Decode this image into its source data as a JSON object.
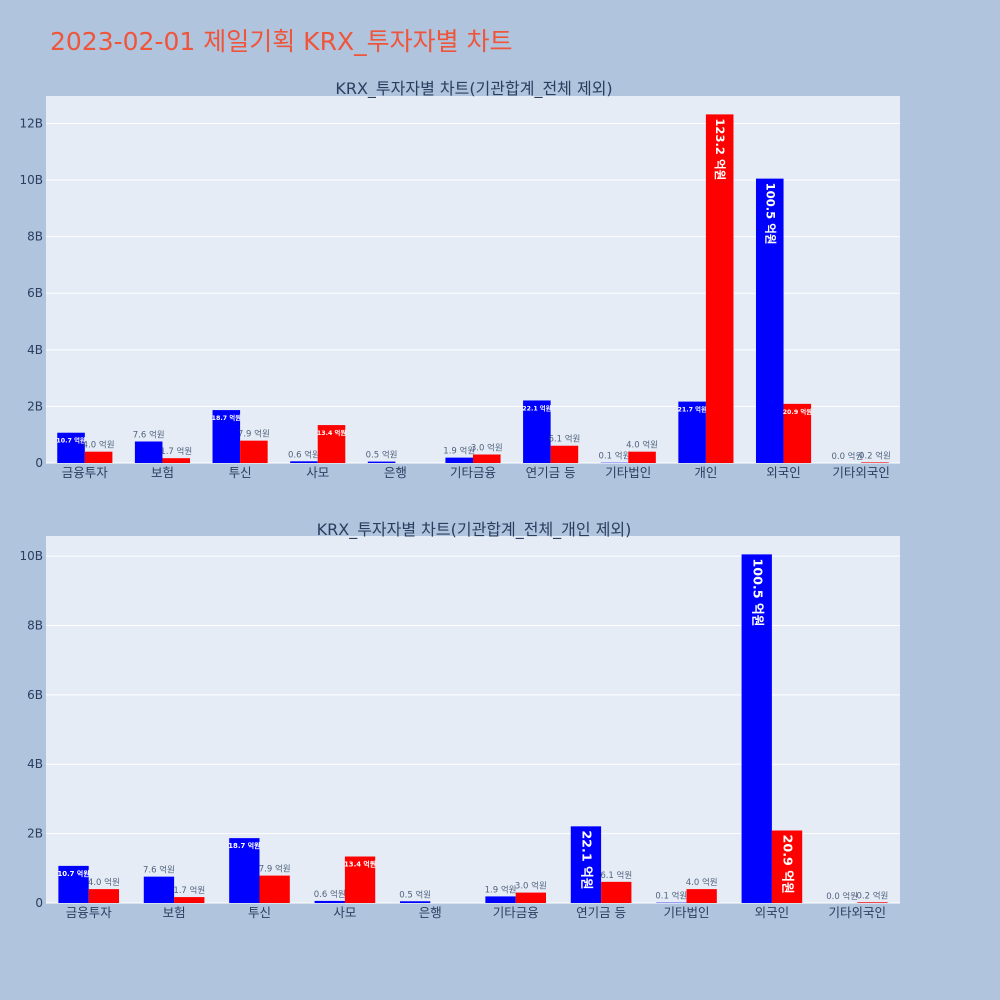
{
  "title": "2023-02-01 제일기획 KRX_투자자별 차트",
  "colors": {
    "buy": "#0000ff",
    "sell": "#ff0000",
    "title": "#ef553b",
    "plot_bg": "#e5ecf6",
    "page_bg": "#b0c4de"
  },
  "chart_data": [
    {
      "type": "bar",
      "title": "KRX_투자자별 차트(기관합계_전체 제외)",
      "categories": [
        "금융투자",
        "보험",
        "투신",
        "사모",
        "은행",
        "기타금융",
        "연기금 등",
        "기타법인",
        "개인",
        "외국인",
        "기타외국인"
      ],
      "series": [
        {
          "color": "#0000ff",
          "values": [
            1070000000.0,
            760000000.0,
            1870000000.0,
            60000000.0,
            50000000.0,
            190000000.0,
            2210000000.0,
            10000000.0,
            2170000000.0,
            10050000000.0,
            0
          ]
        },
        {
          "color": "#ff0000",
          "values": [
            400000000.0,
            170000000.0,
            790000000.0,
            1340000000.0,
            0,
            300000000.0,
            610000000.0,
            400000000.0,
            12320000000.0,
            2090000000.0,
            20000000.0
          ]
        }
      ],
      "bar_labels": [
        [
          "10.7 억원",
          "7.6 억원",
          "18.7 억원",
          "0.6 억원",
          "0.5 억원",
          "1.9 억원",
          "22.1 억원",
          "0.1 억원",
          "21.7 억원",
          "100.5 억원",
          "0.0 억원"
        ],
        [
          "4.0 억원",
          "1.7 억원",
          "7.9 억원",
          "13.4 억원",
          "",
          "3.0 억원",
          "6.1 억원",
          "4.0 억원",
          "123.2 억원",
          "20.9 억원",
          "0.2 억원"
        ]
      ],
      "yticks": [
        0,
        2000000000.0,
        4000000000.0,
        6000000000.0,
        8000000000.0,
        10000000000.0,
        12000000000.0
      ],
      "ytick_labels": [
        "0",
        "2B",
        "4B",
        "6B",
        "8B",
        "10B",
        "12B"
      ],
      "ylim": [
        0,
        12970000000.0
      ],
      "grid": true
    },
    {
      "type": "bar",
      "title": "KRX_투자자별 차트(기관합계_전체_개인 제외)",
      "categories": [
        "금융투자",
        "보험",
        "투신",
        "사모",
        "은행",
        "기타금융",
        "연기금 등",
        "기타법인",
        "외국인",
        "기타외국인"
      ],
      "series": [
        {
          "color": "#0000ff",
          "values": [
            1070000000.0,
            760000000.0,
            1870000000.0,
            60000000.0,
            50000000.0,
            190000000.0,
            2210000000.0,
            10000000.0,
            10050000000.0,
            0
          ]
        },
        {
          "color": "#ff0000",
          "values": [
            400000000.0,
            170000000.0,
            790000000.0,
            1340000000.0,
            0,
            300000000.0,
            610000000.0,
            400000000.0,
            2090000000.0,
            20000000.0
          ]
        }
      ],
      "bar_labels": [
        [
          "10.7 억원",
          "7.6 억원",
          "18.7 억원",
          "0.6 억원",
          "0.5 억원",
          "1.9 억원",
          "22.1 억원",
          "0.1 억원",
          "100.5 억원",
          "0.0 억원"
        ],
        [
          "4.0 억원",
          "1.7 억원",
          "7.9 억원",
          "13.4 억원",
          "",
          "3.0 억원",
          "6.1 억원",
          "4.0 억원",
          "20.9 억원",
          "0.2 억원"
        ]
      ],
      "yticks": [
        0,
        2000000000.0,
        4000000000.0,
        6000000000.0,
        8000000000.0,
        10000000000.0
      ],
      "ytick_labels": [
        "0",
        "2B",
        "4B",
        "6B",
        "8B",
        "10B"
      ],
      "ylim": [
        0,
        10580000000.0
      ],
      "grid": true
    }
  ]
}
